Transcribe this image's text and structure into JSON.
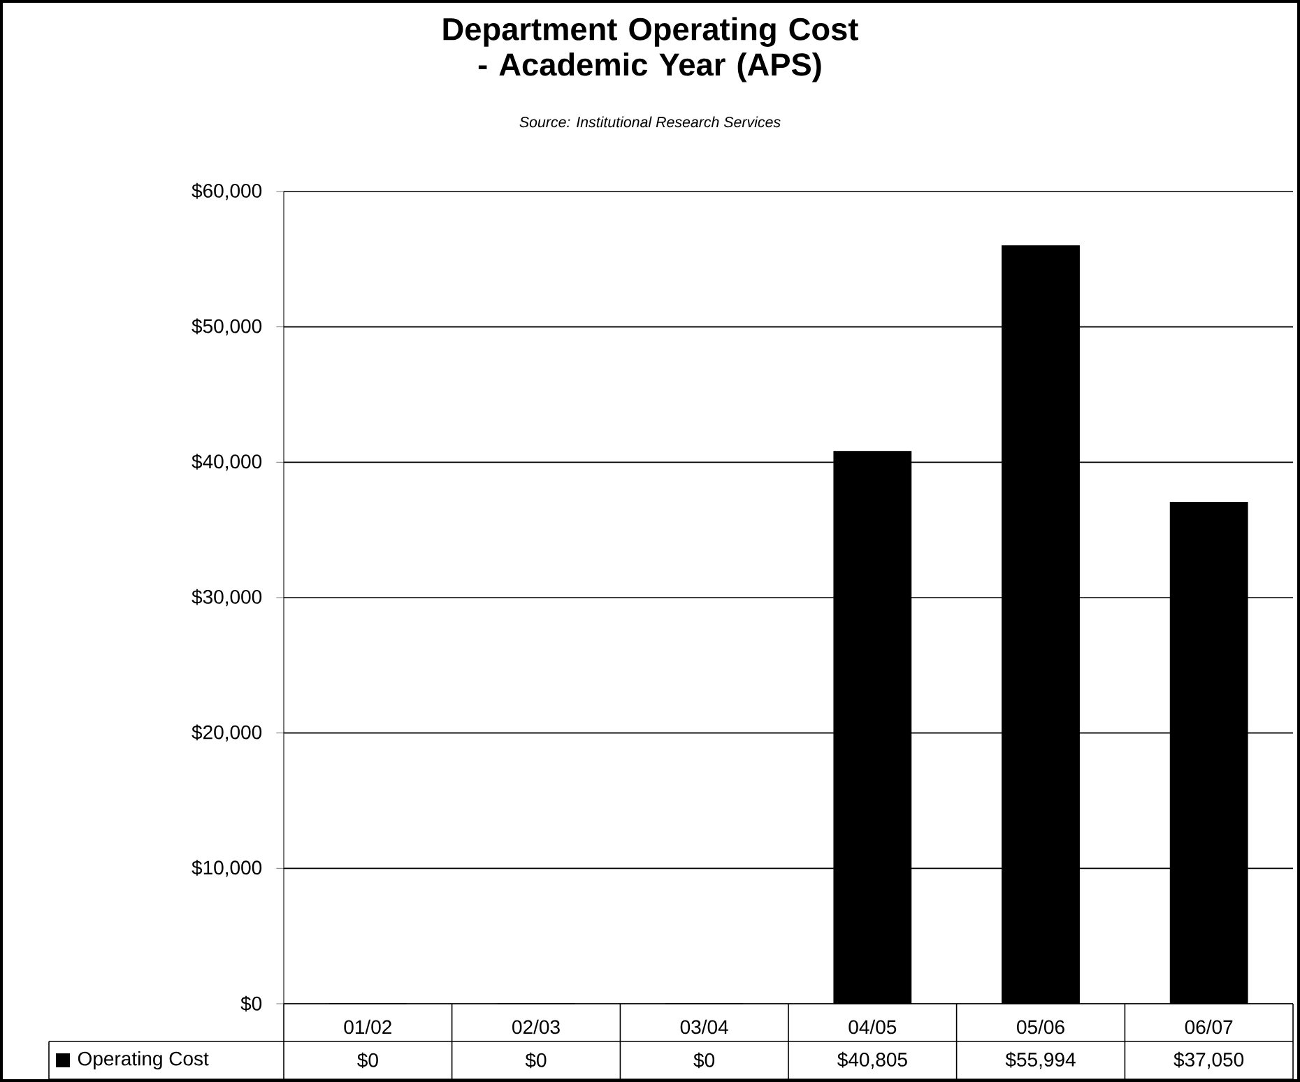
{
  "chart_data": {
    "type": "bar",
    "title": "Department Operating Cost - Academic Year (APS)",
    "subtitle": "Source: Institutional Research Services",
    "categories": [
      "01/02",
      "02/03",
      "03/04",
      "04/05",
      "05/06",
      "06/07"
    ],
    "series": [
      {
        "name": "Operating Cost",
        "color": "#000000",
        "values": [
          0,
          0,
          0,
          40805,
          55994,
          37050
        ],
        "value_labels": [
          "$0",
          "$0",
          "$0",
          "$40,805",
          "$55,994",
          "$37,050"
        ]
      }
    ],
    "ylim": [
      0,
      60000
    ],
    "yticks": [
      {
        "value": 0,
        "label": "$0"
      },
      {
        "value": 10000,
        "label": "$10,000"
      },
      {
        "value": 20000,
        "label": "$20,000"
      },
      {
        "value": 30000,
        "label": "$30,000"
      },
      {
        "value": 40000,
        "label": "$40,000"
      },
      {
        "value": 50000,
        "label": "$50,000"
      },
      {
        "value": 60000,
        "label": "$60,000"
      }
    ],
    "grid": "y",
    "legend": "bottom"
  }
}
